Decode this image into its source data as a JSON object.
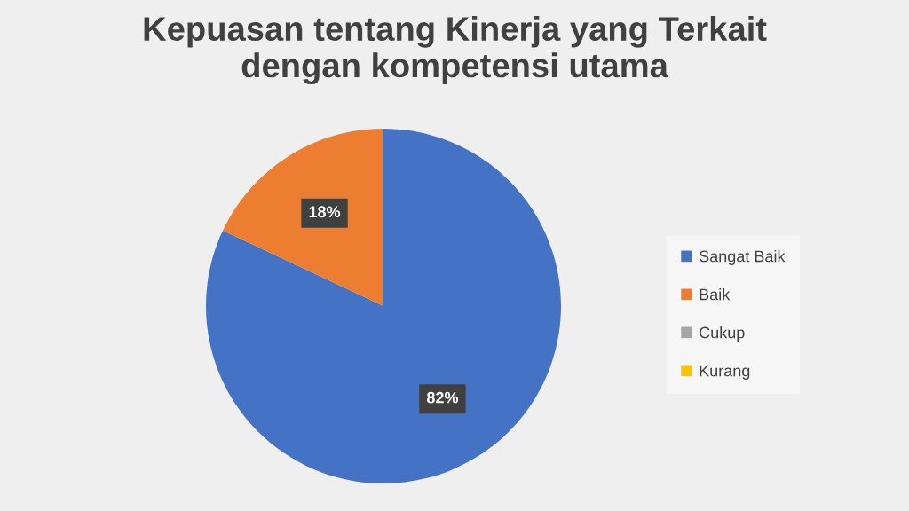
{
  "chart_data": {
    "type": "pie",
    "title": "Kepuasan tentang Kinerja yang Terkait\ndengan kompetensi utama",
    "categories": [
      "Sangat Baik",
      "Baik",
      "Cukup",
      "Kurang"
    ],
    "values": [
      82,
      18,
      0,
      0
    ],
    "colors": [
      "#4472c4",
      "#ed7d31",
      "#a5a5a5",
      "#ffc000"
    ],
    "value_labels": [
      "82%",
      "18%",
      null,
      null
    ],
    "legend": "right"
  }
}
